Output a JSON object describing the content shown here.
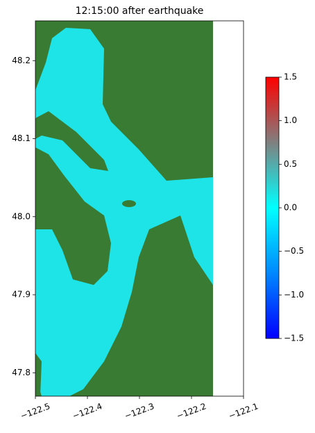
{
  "chart_data": {
    "type": "map",
    "title": "12:15:00 after earthquake",
    "xlim": [
      -122.5,
      -122.1
    ],
    "ylim": [
      47.77,
      48.251
    ],
    "xticks": [
      {
        "value": -122.5,
        "label": "−122.5"
      },
      {
        "value": -122.4,
        "label": "−122.4"
      },
      {
        "value": -122.3,
        "label": "−122.3"
      },
      {
        "value": -122.2,
        "label": "−122.2"
      },
      {
        "value": -122.1,
        "label": "−122.1"
      }
    ],
    "yticks": [
      47.8,
      47.9,
      {
        "value": 48.0,
        "label": "48.0"
      },
      48.1,
      48.2
    ],
    "water_color": "#1ee4e8",
    "land_color": "#3a7b33",
    "colorbar": {
      "lim": [
        -1.5,
        1.5
      ],
      "ticks": [
        {
          "value": -1.5,
          "label": "−1.5"
        },
        {
          "value": -1.0,
          "label": "−1.0"
        },
        {
          "value": -0.5,
          "label": "−0.5"
        },
        {
          "value": 0.0,
          "label": "0.0"
        },
        0.5,
        {
          "value": 1.0,
          "label": "1.0"
        },
        1.5
      ],
      "colors": [
        "#0000ff",
        "#0088ff",
        "#00ffff",
        "#808080",
        "#ff0000"
      ]
    }
  }
}
